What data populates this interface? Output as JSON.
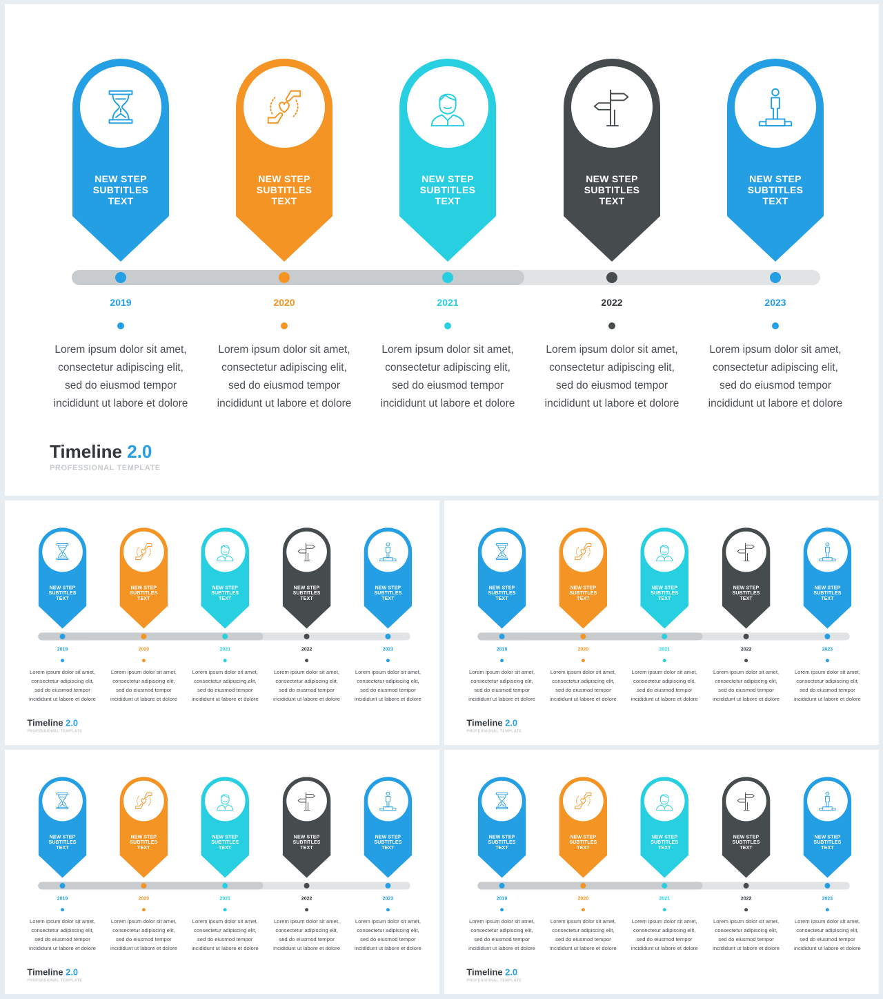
{
  "brand": {
    "title": "Timeline",
    "version": "2.0",
    "subtitle": "PROFESSIONAL TEMPLATE"
  },
  "steps": [
    {
      "title_lines": [
        "NEW STEP",
        "SUBTITLES",
        "TEXT"
      ],
      "year": "2019",
      "color": "#259fe4",
      "icon": "hourglass-icon",
      "desc_lines": [
        "Lorem ipsum dolor sit amet,",
        "consectetur adipiscing elit,",
        "sed do eiusmod tempor",
        "incididunt ut labore et dolore"
      ]
    },
    {
      "title_lines": [
        "NEW STEP",
        "SUBTITLES",
        "TEXT"
      ],
      "year": "2020",
      "color": "#f39424",
      "icon": "hands-heart-icon",
      "desc_lines": [
        "Lorem ipsum dolor sit amet,",
        "consectetur adipiscing elit,",
        "sed do eiusmod tempor",
        "incididunt ut labore et dolore"
      ]
    },
    {
      "title_lines": [
        "NEW STEP",
        "SUBTITLES",
        "TEXT"
      ],
      "year": "2021",
      "color": "#27cfe0",
      "icon": "person-icon",
      "desc_lines": [
        "Lorem ipsum dolor sit amet,",
        "consectetur adipiscing elit,",
        "sed do eiusmod tempor",
        "incididunt ut labore et dolore"
      ]
    },
    {
      "title_lines": [
        "NEW STEP",
        "SUBTITLES",
        "TEXT"
      ],
      "year": "2022",
      "color": "#464b4e",
      "icon": "signpost-icon",
      "desc_lines": [
        "Lorem ipsum dolor sit amet,",
        "consectetur adipiscing elit,",
        "sed do eiusmod tempor",
        "incididunt ut labore et dolore"
      ]
    },
    {
      "title_lines": [
        "NEW STEP",
        "SUBTITLES",
        "TEXT"
      ],
      "year": "2023",
      "color": "#259fe4",
      "icon": "podium-person-icon",
      "desc_lines": [
        "Lorem ipsum dolor sit amet,",
        "consectetur adipiscing elit,",
        "sed do eiusmod tempor",
        "incididunt ut labore et dolore"
      ]
    }
  ],
  "timeline": {
    "track_color": "#e1e3e5",
    "progress_color": "#c9cccf",
    "completed_steps": 3
  }
}
